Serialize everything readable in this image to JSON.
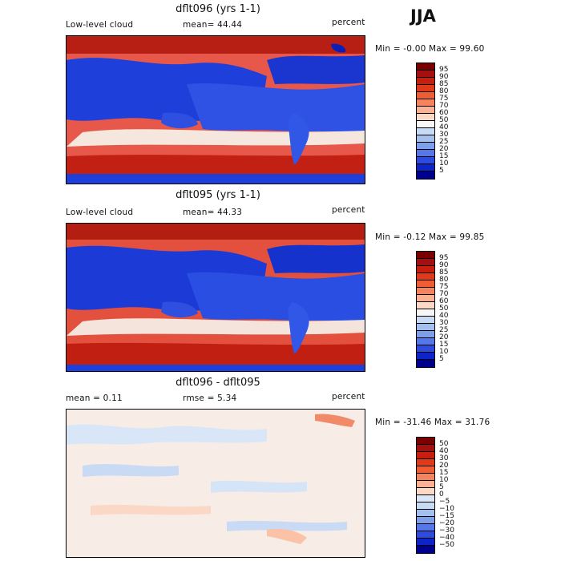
{
  "season": "JJA",
  "units": "percent",
  "panels": [
    {
      "title": "dflt096 (yrs 1-1)",
      "left_label": "Low-level cloud",
      "mid_label": "mean=  44.44",
      "right_label": "percent",
      "minmax": "Min =  -0.00 Max =  99.60",
      "scale": "absolute"
    },
    {
      "title": "dflt095 (yrs 1-1)",
      "left_label": "Low-level cloud",
      "mid_label": "mean=  44.33",
      "right_label": "percent",
      "minmax": "Min =  -0.12 Max =  99.85",
      "scale": "absolute"
    },
    {
      "title": "dflt096 - dflt095",
      "left_label": "mean =   0.11",
      "mid_label": "rmse =   5.34",
      "right_label": "percent",
      "minmax": "Min = -31.46 Max =  31.76",
      "scale": "difference"
    }
  ],
  "absolute_colorbar": {
    "ticks": [
      "95",
      "90",
      "85",
      "80",
      "75",
      "70",
      "60",
      "50",
      "40",
      "30",
      "25",
      "20",
      "15",
      "10",
      "5"
    ],
    "colors": [
      "#7a0000",
      "#a50f0f",
      "#c81e0e",
      "#e03a1a",
      "#ef5d35",
      "#f5845e",
      "#fbb294",
      "#fdd8c4",
      "#f7f7f7",
      "#c7dbf4",
      "#a3c0ee",
      "#7ea0ea",
      "#5577e8",
      "#2e4be0",
      "#0d24c9",
      "#00008f"
    ]
  },
  "difference_colorbar": {
    "ticks": [
      "50",
      "40",
      "30",
      "20",
      "15",
      "10",
      "5",
      "0",
      "−5",
      "−10",
      "−15",
      "−20",
      "−30",
      "−40",
      "−50"
    ],
    "colors": [
      "#7a0000",
      "#a50f0f",
      "#c81e0e",
      "#e03a1a",
      "#ef5d35",
      "#f5845e",
      "#fbb294",
      "#fdd8c4",
      "#dbe7f7",
      "#c7dbf4",
      "#a3c0ee",
      "#7ea0ea",
      "#5577e8",
      "#2e4be0",
      "#0d24c9",
      "#00008f"
    ]
  }
}
